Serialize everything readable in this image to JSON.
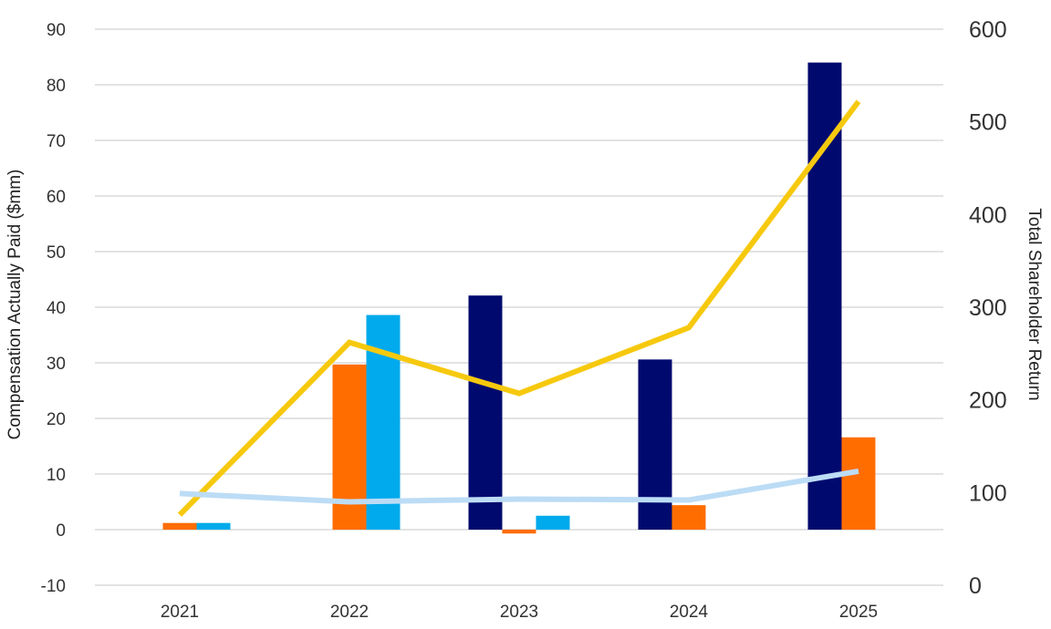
{
  "chart_data": {
    "type": "bar",
    "title": "",
    "xlabel": "",
    "ylabel": "Compensation Actually Paid ($mm)",
    "y2label": "Total Shareholder Return",
    "categories": [
      "2021",
      "2022",
      "2023",
      "2024",
      "2025"
    ],
    "ylim": [
      -10,
      90
    ],
    "y2lim": [
      0,
      600
    ],
    "yticks": [
      "90",
      "80",
      "70",
      "60",
      "50",
      "40",
      "30",
      "20",
      "10",
      "0",
      "-10"
    ],
    "y2ticks": [
      "600",
      "500",
      "400",
      "300",
      "200",
      "100",
      "0"
    ],
    "grid": true,
    "legend": "none",
    "series": [
      {
        "kind": "bar",
        "axis": "left",
        "color": "#000a6e",
        "values": [
          null,
          null,
          42.1,
          30.6,
          84.0
        ]
      },
      {
        "kind": "bar",
        "axis": "left",
        "color": "#ff6d00",
        "values": [
          1.2,
          29.7,
          -0.7,
          4.4,
          16.6
        ]
      },
      {
        "kind": "bar",
        "axis": "left",
        "color": "#00aaec",
        "values": [
          1.2,
          38.6,
          2.5,
          null,
          null
        ]
      },
      {
        "kind": "line",
        "axis": "right",
        "color": "#f6c90e",
        "values": [
          76,
          262,
          207,
          278,
          522
        ]
      },
      {
        "kind": "line",
        "axis": "right",
        "color": "#bcdcf5",
        "values": [
          99,
          90,
          93,
          92,
          123
        ]
      }
    ]
  }
}
